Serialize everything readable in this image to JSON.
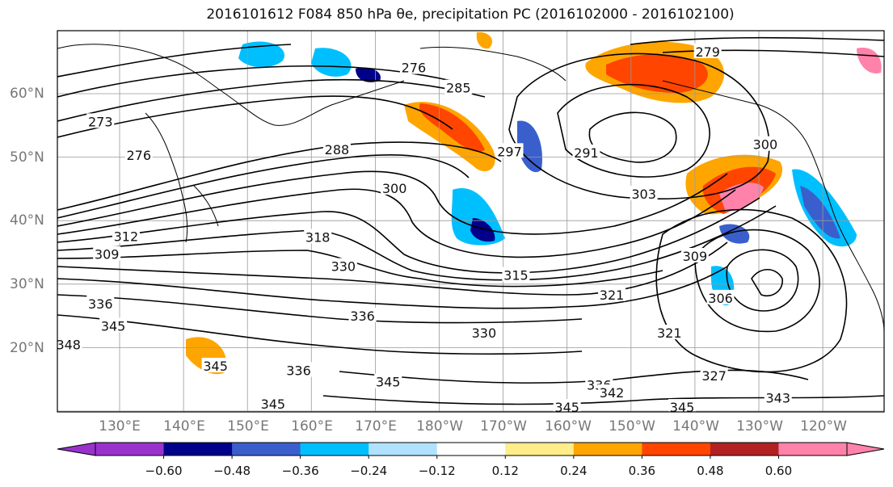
{
  "title": "2016101612 F084 850 hPa θe, precipitation PC (2016102000 - 2016102100)",
  "lat_labels": [
    "60°N",
    "50°N",
    "40°N",
    "30°N",
    "20°N"
  ],
  "lon_labels": [
    "130°E",
    "140°E",
    "150°E",
    "160°E",
    "170°E",
    "180°W",
    "170°W",
    "160°W",
    "150°W",
    "140°W",
    "130°W",
    "120°W"
  ],
  "contour_labels": [
    {
      "text": "279",
      "lon": 222,
      "lat": 66.5
    },
    {
      "text": "276",
      "lon": 176,
      "lat": 64.0
    },
    {
      "text": "285",
      "lon": 183,
      "lat": 60.8
    },
    {
      "text": "273",
      "lon": 127,
      "lat": 55.5
    },
    {
      "text": "276",
      "lon": 133,
      "lat": 50.2
    },
    {
      "text": "288",
      "lon": 164,
      "lat": 51.1
    },
    {
      "text": "297",
      "lon": 191,
      "lat": 50.8
    },
    {
      "text": "291",
      "lon": 203,
      "lat": 50.6
    },
    {
      "text": "300",
      "lon": 173,
      "lat": 45.0
    },
    {
      "text": "303",
      "lon": 212,
      "lat": 44.1
    },
    {
      "text": "300",
      "lon": 231,
      "lat": 51.9
    },
    {
      "text": "318",
      "lon": 161,
      "lat": 37.3
    },
    {
      "text": "312",
      "lon": 131,
      "lat": 37.4
    },
    {
      "text": "309",
      "lon": 128,
      "lat": 34.6
    },
    {
      "text": "330",
      "lon": 165,
      "lat": 32.7
    },
    {
      "text": "315",
      "lon": 192,
      "lat": 31.3
    },
    {
      "text": "309",
      "lon": 220,
      "lat": 34.3
    },
    {
      "text": "306",
      "lon": 224,
      "lat": 27.7
    },
    {
      "text": "321",
      "lon": 207,
      "lat": 28.2
    },
    {
      "text": "336",
      "lon": 127,
      "lat": 26.8
    },
    {
      "text": "345",
      "lon": 129,
      "lat": 23.3
    },
    {
      "text": "336",
      "lon": 168,
      "lat": 24.9
    },
    {
      "text": "330",
      "lon": 187,
      "lat": 22.2
    },
    {
      "text": "321",
      "lon": 216,
      "lat": 22.2
    },
    {
      "text": "348",
      "lon": 122,
      "lat": 20.4
    },
    {
      "text": "345",
      "lon": 145,
      "lat": 17.0
    },
    {
      "text": "336",
      "lon": 158,
      "lat": 16.3
    },
    {
      "text": "345",
      "lon": 172,
      "lat": 14.5
    },
    {
      "text": "336",
      "lon": 205,
      "lat": 14.0
    },
    {
      "text": "342",
      "lon": 207,
      "lat": 12.8
    },
    {
      "text": "327",
      "lon": 223,
      "lat": 15.5
    },
    {
      "text": "345",
      "lon": 200,
      "lat": 10.5
    },
    {
      "text": "345",
      "lon": 218,
      "lat": 10.5
    },
    {
      "text": "343",
      "lon": 233,
      "lat": 12.0
    },
    {
      "text": "345",
      "lon": 154,
      "lat": 11.0
    }
  ],
  "colorbar": {
    "colors": [
      "#9932CC",
      "#00008B",
      "#3A5FCD",
      "#00BFFF",
      "#B0E2FF",
      "#FFFFFF",
      "#FFEC8B",
      "#FFA500",
      "#FF4500",
      "#B22222",
      "#FF82AB"
    ],
    "tick_labels": [
      "−0.60",
      "−0.48",
      "−0.36",
      "−0.24",
      "−0.12",
      "0.12",
      "0.24",
      "0.36",
      "0.48",
      "0.60"
    ]
  }
}
